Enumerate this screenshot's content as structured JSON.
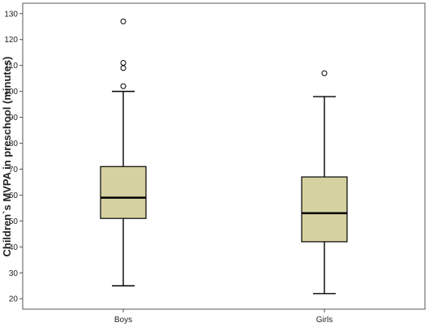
{
  "chart_data": {
    "type": "boxplot",
    "title": "",
    "xlabel": "",
    "ylabel": "Children`s MVPA in preschool (minutes)",
    "ylim": [
      16,
      134
    ],
    "yticks": [
      20,
      30,
      40,
      50,
      60,
      70,
      80,
      90,
      100,
      110,
      120,
      130
    ],
    "grid": false,
    "categories": [
      "Boys",
      "Girls"
    ],
    "boxes": [
      {
        "category": "Boys",
        "whisker_low": 25,
        "q1": 51,
        "median": 59,
        "q3": 71,
        "whisker_high": 100,
        "outliers": [
          102,
          109,
          111,
          127
        ]
      },
      {
        "category": "Girls",
        "whisker_low": 22,
        "q1": 42,
        "median": 53,
        "q3": 67,
        "whisker_high": 98,
        "outliers": [
          107
        ]
      }
    ],
    "colors": {
      "box_fill": "#d6d1a0",
      "stroke": "#000000",
      "frame": "#555555"
    }
  }
}
